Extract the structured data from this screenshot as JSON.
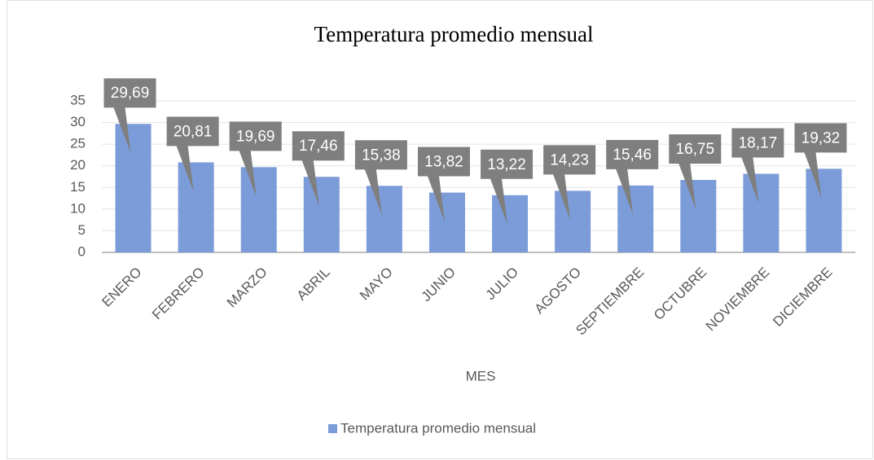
{
  "chart_data": {
    "type": "bar",
    "title": "Temperatura promedio mensual",
    "x_label": "MES",
    "categories": [
      "ENERO",
      "FEBRERO",
      "MARZO",
      "ABRIL",
      "MAYO",
      "JUNIO",
      "JULIO",
      "AGOSTO",
      "SEPTIEMBRE",
      "OCTUBRE",
      "NOVIEMBRE",
      "DICIEMBRE"
    ],
    "series": [
      {
        "name": "Temperatura promedio mensual",
        "color": "#7b9cd9",
        "values": [
          29.69,
          20.81,
          19.69,
          17.46,
          15.38,
          13.82,
          13.22,
          14.23,
          15.46,
          16.75,
          18.17,
          19.32
        ],
        "value_labels": [
          "29,69",
          "20,81",
          "19,69",
          "17,46",
          "15,38",
          "13,82",
          "13,22",
          "14,23",
          "15,46",
          "16,75",
          "18,17",
          "19,32"
        ]
      }
    ],
    "ylim": [
      0,
      35
    ],
    "yticks": [
      0,
      5,
      10,
      15,
      20,
      25,
      30,
      35
    ],
    "grid": true,
    "legend": "bottom"
  }
}
